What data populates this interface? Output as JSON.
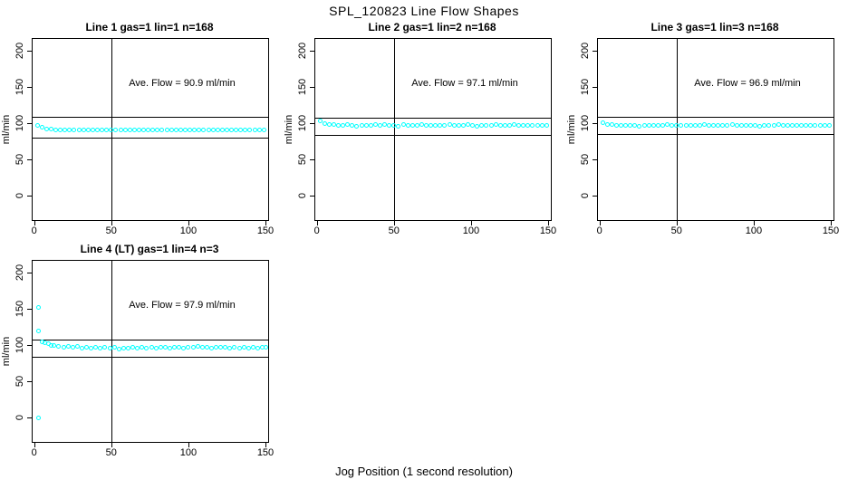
{
  "figure_title": "SPL_120823  Line Flow Shapes",
  "x_axis_title": "Jog Position (1 second resolution)",
  "colors": {
    "marker": "#00FFFF",
    "line": "#000000",
    "background": "#FFFFFF",
    "text": "#000000"
  },
  "axes": {
    "ylabel": "ml/min",
    "x_ticks": [
      0,
      50,
      100,
      150
    ],
    "y_ticks": [
      0,
      50,
      100,
      150,
      200
    ],
    "xlim": [
      -1,
      152
    ],
    "ylim": [
      -34,
      216
    ],
    "grid": false
  },
  "chart_data": [
    {
      "type": "scatter",
      "title": "Line 1 gas=1 lin=1 n=168",
      "annotation": "Ave. Flow =  90.9  ml/min",
      "ave_flow_ml_min": 90.9,
      "n": 168,
      "vline_x": 50,
      "ref_lines": [
        108.5,
        80
      ],
      "points": [
        [
          2,
          97.2
        ],
        [
          5,
          93.8
        ],
        [
          8,
          92.2
        ],
        [
          11,
          91.4
        ],
        [
          14,
          90.9
        ],
        [
          17,
          90.4
        ],
        [
          20,
          91.2
        ],
        [
          23,
          90.6
        ],
        [
          26,
          90.2
        ],
        [
          29,
          90.9
        ],
        [
          32,
          91.1
        ],
        [
          35,
          90.3
        ],
        [
          38,
          90.8
        ],
        [
          41,
          90.5
        ],
        [
          44,
          91.2
        ],
        [
          47,
          90.6
        ],
        [
          50,
          90.9
        ],
        [
          53,
          90.4
        ],
        [
          56,
          91.1
        ],
        [
          59,
          90.7
        ],
        [
          62,
          90.2
        ],
        [
          65,
          90.8
        ],
        [
          68,
          91.2
        ],
        [
          71,
          90.4
        ],
        [
          74,
          90.9
        ],
        [
          77,
          90.6
        ],
        [
          80,
          91.0
        ],
        [
          83,
          90.3
        ],
        [
          86,
          90.8
        ],
        [
          89,
          91.2
        ],
        [
          92,
          90.5
        ],
        [
          95,
          90.9
        ],
        [
          98,
          90.4
        ],
        [
          101,
          91.1
        ],
        [
          104,
          90.6
        ],
        [
          107,
          90.2
        ],
        [
          110,
          90.9
        ],
        [
          113,
          91.2
        ],
        [
          116,
          90.5
        ],
        [
          119,
          90.8
        ],
        [
          122,
          90.3
        ],
        [
          125,
          91.0
        ],
        [
          128,
          90.6
        ],
        [
          131,
          90.9
        ],
        [
          134,
          90.4
        ],
        [
          137,
          91.1
        ],
        [
          140,
          90.7
        ],
        [
          143,
          90.3
        ],
        [
          146,
          90.9
        ],
        [
          149,
          90.6
        ]
      ]
    },
    {
      "type": "scatter",
      "title": "Line 2 gas=1 lin=2 n=168",
      "annotation": "Ave. Flow =  97.1  ml/min",
      "ave_flow_ml_min": 97.1,
      "n": 168,
      "vline_x": 50,
      "ref_lines": [
        107.5,
        84
      ],
      "points": [
        [
          2,
          102.6
        ],
        [
          5,
          99.4
        ],
        [
          8,
          98.2
        ],
        [
          11,
          97.6
        ],
        [
          14,
          97.2
        ],
        [
          17,
          96.5
        ],
        [
          20,
          97.8
        ],
        [
          23,
          96.9
        ],
        [
          26,
          96.1
        ],
        [
          29,
          97.4
        ],
        [
          32,
          97.0
        ],
        [
          35,
          96.3
        ],
        [
          38,
          97.6
        ],
        [
          41,
          96.8
        ],
        [
          44,
          97.9
        ],
        [
          47,
          96.5
        ],
        [
          50,
          97.1
        ],
        [
          53,
          96.2
        ],
        [
          56,
          97.7
        ],
        [
          59,
          97.0
        ],
        [
          62,
          96.4
        ],
        [
          65,
          97.3
        ],
        [
          68,
          97.8
        ],
        [
          71,
          96.6
        ],
        [
          74,
          97.1
        ],
        [
          77,
          96.3
        ],
        [
          80,
          97.5
        ],
        [
          83,
          96.8
        ],
        [
          86,
          97.9
        ],
        [
          89,
          96.4
        ],
        [
          92,
          97.2
        ],
        [
          95,
          96.7
        ],
        [
          98,
          97.6
        ],
        [
          101,
          96.9
        ],
        [
          104,
          96.2
        ],
        [
          107,
          97.4
        ],
        [
          110,
          97.0
        ],
        [
          113,
          96.5
        ],
        [
          116,
          97.8
        ],
        [
          119,
          96.8
        ],
        [
          122,
          97.3
        ],
        [
          125,
          96.4
        ],
        [
          128,
          97.7
        ],
        [
          131,
          97.0
        ],
        [
          134,
          96.6
        ],
        [
          137,
          97.2
        ],
        [
          140,
          96.9
        ],
        [
          143,
          97.5
        ],
        [
          146,
          96.7
        ],
        [
          149,
          97.1
        ]
      ]
    },
    {
      "type": "scatter",
      "title": "Line 3 gas=1 lin=3 n=168",
      "annotation": "Ave. Flow =  96.9  ml/min",
      "ave_flow_ml_min": 96.9,
      "n": 168,
      "vline_x": 50,
      "ref_lines": [
        108.5,
        85.5
      ],
      "points": [
        [
          2,
          100.4
        ],
        [
          5,
          98.6
        ],
        [
          8,
          97.8
        ],
        [
          11,
          97.3
        ],
        [
          14,
          96.9
        ],
        [
          17,
          96.4
        ],
        [
          20,
          97.5
        ],
        [
          23,
          96.8
        ],
        [
          26,
          96.2
        ],
        [
          29,
          97.2
        ],
        [
          32,
          96.9
        ],
        [
          35,
          96.5
        ],
        [
          38,
          97.4
        ],
        [
          41,
          96.7
        ],
        [
          44,
          97.7
        ],
        [
          47,
          96.4
        ],
        [
          50,
          96.9
        ],
        [
          53,
          96.3
        ],
        [
          56,
          97.5
        ],
        [
          59,
          96.8
        ],
        [
          62,
          96.4
        ],
        [
          65,
          97.1
        ],
        [
          68,
          97.6
        ],
        [
          71,
          96.5
        ],
        [
          74,
          96.9
        ],
        [
          77,
          96.3
        ],
        [
          80,
          97.3
        ],
        [
          83,
          96.7
        ],
        [
          86,
          97.7
        ],
        [
          89,
          96.4
        ],
        [
          92,
          97.0
        ],
        [
          95,
          96.6
        ],
        [
          98,
          97.4
        ],
        [
          101,
          96.8
        ],
        [
          104,
          96.2
        ],
        [
          107,
          97.2
        ],
        [
          110,
          96.9
        ],
        [
          113,
          96.4
        ],
        [
          116,
          97.6
        ],
        [
          119,
          96.7
        ],
        [
          122,
          97.1
        ],
        [
          125,
          96.3
        ],
        [
          128,
          97.5
        ],
        [
          131,
          96.9
        ],
        [
          134,
          96.5
        ],
        [
          137,
          97.0
        ],
        [
          140,
          96.8
        ],
        [
          143,
          97.3
        ],
        [
          146,
          96.6
        ],
        [
          149,
          96.9
        ]
      ]
    },
    {
      "type": "scatter",
      "title": "Line 4 (LT) gas=1 lin=4 n=3",
      "annotation": "Ave. Flow =  97.9  ml/min",
      "ave_flow_ml_min": 97.9,
      "n": 3,
      "vline_x": 50,
      "ref_lines": [
        107.5,
        84
      ],
      "points": [
        [
          3,
          151.5
        ],
        [
          3,
          119.5
        ],
        [
          3,
          -1
        ],
        [
          5,
          104.2
        ],
        [
          7,
          102.8
        ],
        [
          9,
          101.3
        ],
        [
          11,
          99.8
        ],
        [
          13,
          98.9
        ],
        [
          16,
          98.2
        ],
        [
          19,
          97.1
        ],
        [
          22,
          98.5
        ],
        [
          25,
          96.8
        ],
        [
          28,
          97.9
        ],
        [
          31,
          96.2
        ],
        [
          34,
          97.4
        ],
        [
          37,
          95.8
        ],
        [
          40,
          96.9
        ],
        [
          43,
          95.4
        ],
        [
          46,
          96.6
        ],
        [
          49,
          95.1
        ],
        [
          52,
          96.3
        ],
        [
          55,
          94.9
        ],
        [
          58,
          96.0
        ],
        [
          61,
          95.3
        ],
        [
          64,
          96.8
        ],
        [
          67,
          95.6
        ],
        [
          70,
          96.4
        ],
        [
          73,
          95.2
        ],
        [
          76,
          96.9
        ],
        [
          79,
          95.7
        ],
        [
          82,
          96.5
        ],
        [
          85,
          97.3
        ],
        [
          88,
          95.9
        ],
        [
          91,
          96.7
        ],
        [
          94,
          97.4
        ],
        [
          97,
          96.1
        ],
        [
          100,
          97.0
        ],
        [
          103,
          96.3
        ],
        [
          106,
          97.6
        ],
        [
          109,
          96.5
        ],
        [
          112,
          97.2
        ],
        [
          115,
          96.0
        ],
        [
          118,
          97.5
        ],
        [
          121,
          96.4
        ],
        [
          124,
          97.1
        ],
        [
          127,
          95.8
        ],
        [
          130,
          96.8
        ],
        [
          133,
          96.2
        ],
        [
          136,
          97.3
        ],
        [
          139,
          95.9
        ],
        [
          142,
          96.6
        ],
        [
          145,
          96.1
        ],
        [
          148,
          96.8
        ],
        [
          150,
          96.4
        ]
      ]
    }
  ]
}
